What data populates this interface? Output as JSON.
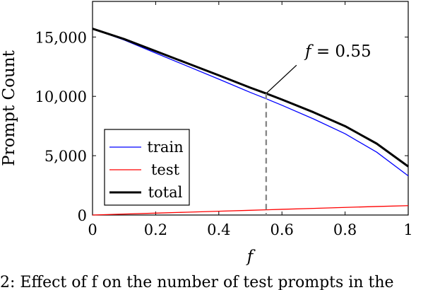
{
  "chart_data": {
    "type": "line",
    "xlabel": "f",
    "ylabel": "Prompt Count",
    "xlim": [
      0,
      1
    ],
    "ylim": [
      0,
      18000
    ],
    "x_ticks": [
      0,
      0.2,
      0.4,
      0.6,
      0.8,
      1
    ],
    "x_tick_labels": [
      "0",
      "0.2",
      "0.4",
      "0.6",
      "0.8",
      "1"
    ],
    "y_ticks": [
      0,
      5000,
      10000,
      15000
    ],
    "y_tick_labels": [
      "0",
      "5,000",
      "10,000",
      "15,000"
    ],
    "grid": false,
    "legend_position": "bottom-left",
    "x": [
      0,
      0.1,
      0.2,
      0.3,
      0.4,
      0.5,
      0.55,
      0.6,
      0.7,
      0.8,
      0.9,
      1.0
    ],
    "series": [
      {
        "name": "train",
        "color": "#0000ff",
        "values": [
          15700,
          14750,
          13650,
          12550,
          11450,
          10330,
          9800,
          9250,
          8100,
          6850,
          5300,
          3300
        ]
      },
      {
        "name": "test",
        "color": "#ff0000",
        "values": [
          0,
          80,
          160,
          240,
          320,
          400,
          440,
          480,
          560,
          640,
          720,
          790
        ]
      },
      {
        "name": "total",
        "color": "#000000",
        "values": [
          15700,
          14830,
          13810,
          12790,
          11770,
          10730,
          10240,
          9730,
          8660,
          7490,
          6020,
          4090
        ]
      }
    ],
    "annotation": {
      "text": "f = 0.55",
      "x": 0.55,
      "y": 10240
    }
  },
  "caption": {
    "text": "2: Effect of f on the number of test prompts in the"
  }
}
